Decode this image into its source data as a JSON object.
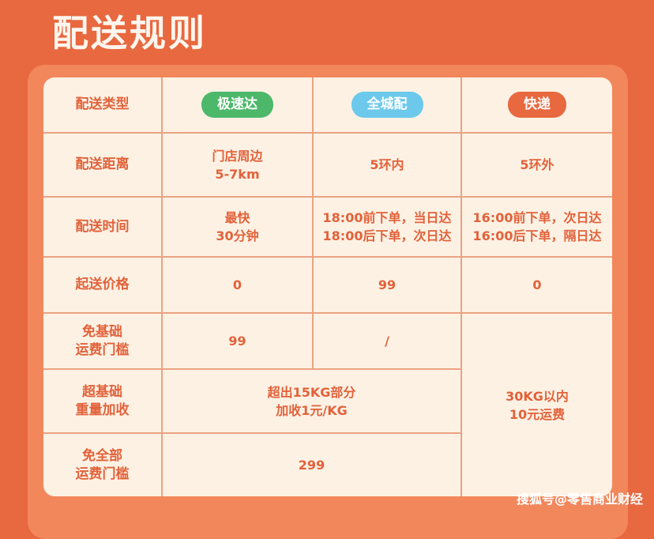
{
  "header": {
    "title": "配送规则"
  },
  "table": {
    "header_label": "配送类型",
    "types": [
      "极速达",
      "全城配",
      "快递"
    ],
    "rows": [
      {
        "label": [
          "配送距离"
        ],
        "cells": [
          [
            "门店周边",
            "5-7km"
          ],
          [
            "5环内"
          ],
          [
            "5环外"
          ]
        ]
      },
      {
        "label": [
          "配送时间"
        ],
        "cells": [
          [
            "最快",
            "30分钟"
          ],
          [
            "18:00前下单，当日达",
            "18:00后下单，次日达"
          ],
          [
            "16:00前下单，次日达",
            "16:00后下单，隔日达"
          ]
        ]
      },
      {
        "label": [
          "起送价格"
        ],
        "cells": [
          [
            "0"
          ],
          [
            "99"
          ],
          [
            "0"
          ]
        ]
      },
      {
        "label": [
          "免基础",
          "运费门槛"
        ],
        "cells": [
          [
            "99"
          ],
          [
            "/"
          ]
        ]
      },
      {
        "label": [
          "超基础",
          "重量加收"
        ],
        "cells": [
          [
            "超出15KG部分",
            "加收1元/KG"
          ]
        ]
      },
      {
        "label": [
          "免全部",
          "运费门槛"
        ],
        "cells": [
          [
            "299"
          ]
        ]
      }
    ],
    "merged_cell": [
      "30KG以内",
      "10元运费"
    ]
  },
  "watermark": "搜狐号@零售商业财经"
}
